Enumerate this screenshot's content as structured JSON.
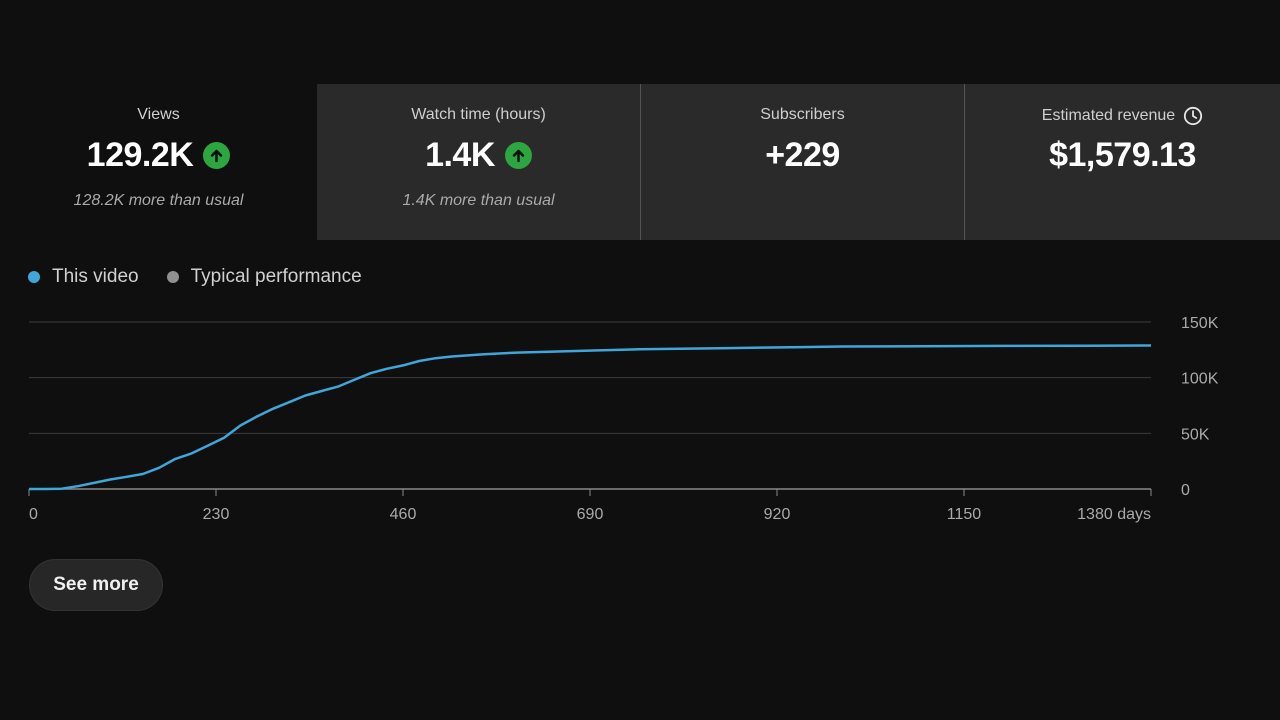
{
  "stats": {
    "views": {
      "label": "Views",
      "value": "129.2K",
      "sub": "128.2K more than usual",
      "trend_icon": "arrow-up-circle-icon"
    },
    "watch_time": {
      "label": "Watch time (hours)",
      "value": "1.4K",
      "sub": "1.4K more than usual",
      "trend_icon": "arrow-up-circle-icon"
    },
    "subscribers": {
      "label": "Subscribers",
      "value": "+229"
    },
    "revenue": {
      "label": "Estimated revenue",
      "value": "$1,579.13",
      "info_icon": "clock-icon"
    }
  },
  "legend": {
    "this_video": "This video",
    "typical": "Typical performance"
  },
  "colors": {
    "series": "#3ea6d9",
    "typical": "#909090",
    "up_green": "#2ba640"
  },
  "see_more_label": "See more",
  "chart_data": {
    "type": "line",
    "xlabel": "",
    "ylabel": "",
    "xlim": [
      0,
      1380
    ],
    "ylim": [
      0,
      150000
    ],
    "x_ticks": [
      0,
      230,
      460,
      690,
      920,
      1150,
      1380
    ],
    "x_tick_labels": [
      "0",
      "230",
      "460",
      "690",
      "920",
      "1150",
      "1380 days"
    ],
    "y_ticks": [
      0,
      50000,
      100000,
      150000
    ],
    "y_tick_labels": [
      "0",
      "50K",
      "100K",
      "150K"
    ],
    "grid": true,
    "series": [
      {
        "name": "This video",
        "x": [
          0,
          20,
          40,
          60,
          80,
          100,
          120,
          140,
          160,
          180,
          200,
          220,
          240,
          260,
          280,
          300,
          320,
          340,
          360,
          380,
          400,
          420,
          440,
          460,
          480,
          500,
          520,
          540,
          560,
          600,
          650,
          700,
          750,
          800,
          850,
          900,
          950,
          1000,
          1100,
          1200,
          1300,
          1380
        ],
        "y": [
          0,
          0,
          300,
          2500,
          5500,
          8500,
          11000,
          13500,
          19000,
          27000,
          32000,
          39000,
          46000,
          57000,
          65000,
          72000,
          78000,
          84000,
          88000,
          92000,
          98000,
          104000,
          108000,
          111000,
          115000,
          117500,
          119000,
          120000,
          121000,
          122500,
          123500,
          124500,
          125500,
          126000,
          126500,
          127000,
          127500,
          128000,
          128300,
          128500,
          128700,
          128900
        ]
      }
    ]
  }
}
